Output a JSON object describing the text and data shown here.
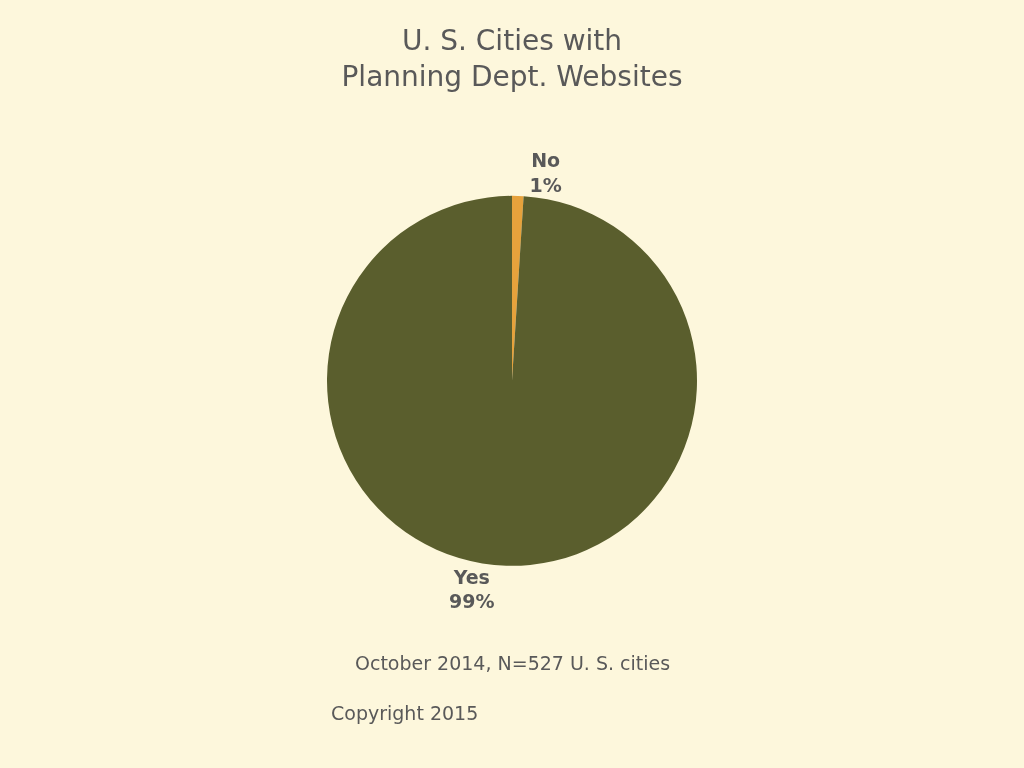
{
  "chart_data": {
    "type": "pie",
    "title": "U. S. Cities with\nPlanning Dept. Websites",
    "categories": [
      "No",
      "Yes"
    ],
    "values": [
      1,
      99
    ],
    "colors": [
      "#e6a23c",
      "#5a5e2d"
    ],
    "value_labels": [
      "1%",
      "99%"
    ],
    "legend": false,
    "annotations": [
      "October 2014, N=527 U. S. cities",
      "Copyright 2015"
    ]
  }
}
